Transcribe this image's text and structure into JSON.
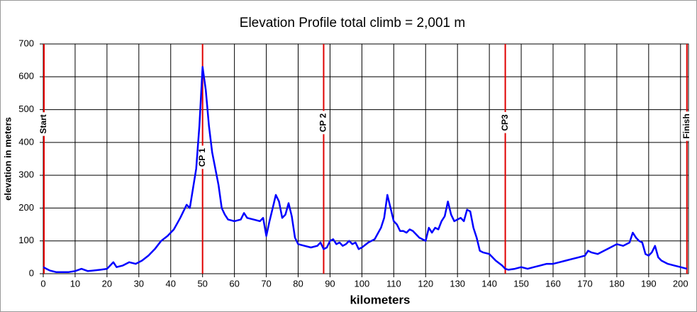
{
  "chart_data": {
    "type": "line",
    "title": "Elevation Profile   total climb = 2,001 m",
    "x_label": "kilometers",
    "y_label": "elevation in meters",
    "xlim": [
      0,
      202.5
    ],
    "ylim": [
      0,
      700
    ],
    "xticks": [
      0,
      10,
      20,
      30,
      40,
      50,
      60,
      70,
      80,
      90,
      100,
      110,
      120,
      130,
      140,
      150,
      160,
      170,
      180,
      190,
      200
    ],
    "yticks": [
      0,
      100,
      200,
      300,
      400,
      500,
      600,
      700
    ],
    "grid": true,
    "markers_color": "#e00000",
    "markers": [
      {
        "label": "Start",
        "x": 0
      },
      {
        "label": "CP 1",
        "x": 50
      },
      {
        "label": "CP 2",
        "x": 88
      },
      {
        "label": "CP3",
        "x": 145
      },
      {
        "label": "Finish",
        "x": 202
      }
    ],
    "series": [
      {
        "name": "elevation",
        "color": "#0000ff",
        "x": [
          0,
          1,
          2,
          4,
          6,
          8,
          10,
          12,
          14,
          16,
          18,
          20,
          22,
          23,
          25,
          27,
          29,
          31,
          33,
          35,
          37,
          39,
          41,
          43,
          45,
          46,
          47,
          48,
          49,
          50,
          51,
          52,
          53,
          54,
          55,
          56,
          57,
          58,
          60,
          62,
          63,
          64,
          66,
          68,
          69,
          70,
          71,
          72,
          73,
          74,
          75,
          76,
          77,
          78,
          79,
          80,
          82,
          84,
          86,
          87,
          88,
          89,
          90,
          91,
          92,
          93,
          94,
          95,
          96,
          97,
          98,
          99,
          100,
          102,
          104,
          106,
          107,
          108,
          109,
          110,
          111,
          112,
          113,
          114,
          115,
          116,
          118,
          120,
          121,
          122,
          123,
          124,
          125,
          126,
          127,
          128,
          129,
          131,
          132,
          133,
          134,
          135,
          136,
          137,
          138,
          140,
          142,
          144,
          145,
          146,
          148,
          150,
          152,
          154,
          156,
          158,
          160,
          162,
          164,
          166,
          168,
          170,
          171,
          172,
          174,
          176,
          178,
          180,
          182,
          184,
          185,
          186,
          187,
          188,
          189,
          190,
          191,
          192,
          193,
          194,
          196,
          198,
          200,
          202
        ],
        "values": [
          20,
          15,
          10,
          5,
          5,
          5,
          8,
          15,
          8,
          10,
          12,
          15,
          35,
          20,
          25,
          35,
          30,
          40,
          55,
          75,
          100,
          115,
          135,
          170,
          210,
          200,
          260,
          320,
          450,
          630,
          560,
          450,
          370,
          320,
          270,
          200,
          180,
          165,
          160,
          165,
          185,
          170,
          165,
          160,
          170,
          115,
          160,
          200,
          240,
          220,
          170,
          180,
          215,
          175,
          110,
          90,
          85,
          80,
          85,
          95,
          75,
          80,
          100,
          105,
          90,
          95,
          85,
          90,
          100,
          90,
          95,
          75,
          80,
          95,
          105,
          140,
          170,
          240,
          200,
          160,
          150,
          130,
          130,
          125,
          135,
          130,
          110,
          100,
          140,
          125,
          140,
          135,
          160,
          175,
          220,
          180,
          160,
          170,
          160,
          195,
          190,
          140,
          110,
          70,
          65,
          60,
          40,
          25,
          15,
          12,
          15,
          20,
          15,
          20,
          25,
          30,
          30,
          35,
          40,
          45,
          50,
          55,
          70,
          65,
          60,
          70,
          80,
          90,
          85,
          95,
          125,
          110,
          100,
          95,
          60,
          55,
          65,
          85,
          50,
          40,
          30,
          25,
          20,
          15
        ]
      }
    ]
  }
}
